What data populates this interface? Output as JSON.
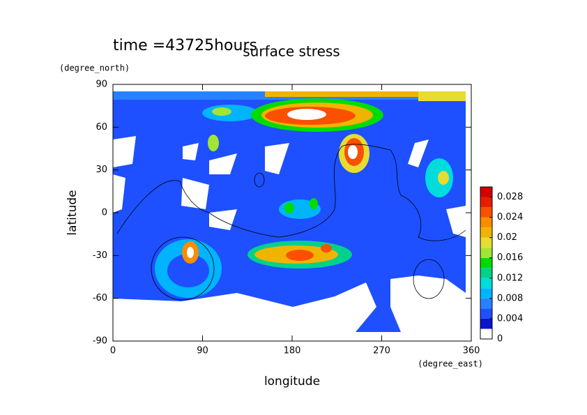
{
  "chart_data": {
    "type": "contour",
    "title": "surface stress",
    "annotation": "time =43725hours",
    "xlabel": "longitude",
    "xunit": "(degree_east)",
    "ylabel": "latitude",
    "yunit": "(degree_north)",
    "xlim": [
      0,
      360
    ],
    "xticks": [
      0,
      90,
      180,
      270,
      360
    ],
    "ylim": [
      -90,
      90
    ],
    "yticks": [
      -90,
      -60,
      -30,
      0,
      30,
      60,
      90
    ],
    "colorbar": {
      "levels": [
        0,
        0.002,
        0.004,
        0.006,
        0.008,
        0.01,
        0.012,
        0.014,
        0.016,
        0.018,
        0.02,
        0.022,
        0.024,
        0.026,
        0.028,
        0.03
      ],
      "colors": [
        "#ffffff",
        "#0a14c8",
        "#1e50ff",
        "#2882ff",
        "#00b4ff",
        "#00dcdc",
        "#00d28c",
        "#00dc00",
        "#a0e632",
        "#e6dc32",
        "#f0b400",
        "#fa8c00",
        "#fa5000",
        "#e61e00",
        "#d20000"
      ],
      "ticks": [
        0,
        0.004,
        0.008,
        0.012,
        0.016,
        0.02,
        0.024,
        0.028
      ]
    }
  }
}
